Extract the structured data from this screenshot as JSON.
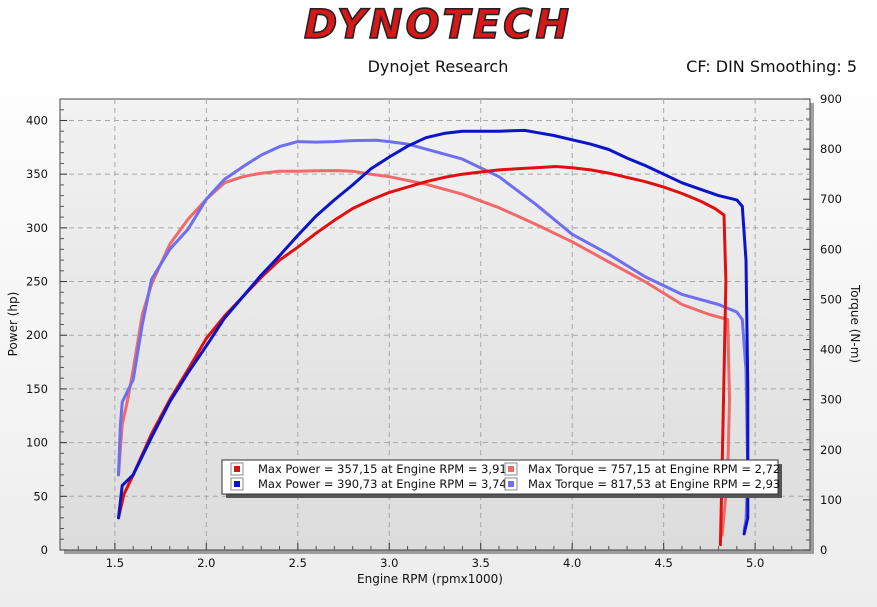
{
  "header": {
    "logo_text": "DYNOTECH",
    "company": "Dynojet Research",
    "settings": "CF: DIN Smoothing: 5"
  },
  "colors": {
    "red_dark": "#e01010",
    "red_light": "#f06a6a",
    "blue_dark": "#0a14c8",
    "blue_light": "#6e6ef0",
    "plot_bg": "#e4e4e4",
    "frame_bg": "#f0f0f0"
  },
  "chart_data": {
    "type": "line",
    "xlabel": "Engine RPM (rpmx1000)",
    "ylabel_left": "Power (hp)",
    "ylabel_right": "Torque (N-m)",
    "xlim": [
      1.2,
      5.3
    ],
    "ylim_left": [
      0,
      420
    ],
    "ylim_right": [
      0,
      900
    ],
    "x_ticks": [
      "1.5",
      "2.0",
      "2.5",
      "3.0",
      "3.5",
      "4.0",
      "4.5",
      "5.0"
    ],
    "y_left_ticks": [
      "0",
      "50",
      "100",
      "150",
      "200",
      "250",
      "300",
      "350",
      "400"
    ],
    "y_right_ticks": [
      "0",
      "100",
      "200",
      "300",
      "400",
      "500",
      "600",
      "700",
      "800",
      "900"
    ],
    "grid": true,
    "legend_position": "bottom-center",
    "legend": [
      "Max Power = 357,15 at Engine RPM = 3,91",
      "Max Power = 390,73 at Engine RPM = 3,74",
      "Max Torque = 757,15 at Engine RPM = 2,72",
      "Max Torque = 817,53 at Engine RPM = 2,93"
    ],
    "series": [
      {
        "name": "Max Power = 357,15 at Engine RPM = 3,91",
        "axis": "left",
        "color": "#e01010",
        "x": [
          1.52,
          1.55,
          1.6,
          1.7,
          1.8,
          1.9,
          2.0,
          2.1,
          2.2,
          2.3,
          2.4,
          2.5,
          2.6,
          2.7,
          2.8,
          2.9,
          3.0,
          3.1,
          3.2,
          3.3,
          3.4,
          3.5,
          3.6,
          3.7,
          3.8,
          3.91,
          4.0,
          4.1,
          4.2,
          4.3,
          4.4,
          4.5,
          4.6,
          4.7,
          4.78,
          4.83,
          4.84,
          4.82,
          4.81
        ],
        "y": [
          30,
          52,
          70,
          108,
          140,
          168,
          197,
          218,
          236,
          254,
          270,
          282,
          295,
          307,
          318,
          326,
          333,
          338,
          343,
          347,
          350,
          352,
          354,
          355,
          356,
          357.15,
          356,
          354,
          351,
          347,
          343,
          338,
          332,
          325,
          318,
          312,
          250,
          80,
          5
        ]
      },
      {
        "name": "Max Power = 390,73 at Engine RPM = 3,74",
        "axis": "left",
        "color": "#0a14c8",
        "x": [
          1.52,
          1.54,
          1.6,
          1.7,
          1.8,
          1.9,
          2.0,
          2.1,
          2.2,
          2.3,
          2.4,
          2.5,
          2.6,
          2.7,
          2.8,
          2.9,
          3.0,
          3.1,
          3.2,
          3.3,
          3.4,
          3.5,
          3.6,
          3.74,
          3.8,
          3.9,
          4.0,
          4.1,
          4.2,
          4.3,
          4.4,
          4.5,
          4.6,
          4.7,
          4.8,
          4.9,
          4.93,
          4.95,
          4.96,
          4.96,
          4.94
        ],
        "y": [
          30,
          60,
          70,
          105,
          138,
          165,
          190,
          216,
          236,
          256,
          274,
          293,
          311,
          326,
          340,
          355,
          366,
          376,
          384,
          388,
          390,
          390,
          390,
          390.73,
          389,
          386,
          382,
          378,
          373,
          365,
          358,
          350,
          342,
          336,
          330,
          326,
          320,
          270,
          150,
          30,
          15
        ]
      },
      {
        "name": "Max Torque = 757,15 at Engine RPM = 2,72",
        "axis": "right",
        "color": "#f06a6a",
        "x": [
          1.52,
          1.54,
          1.57,
          1.6,
          1.65,
          1.7,
          1.75,
          1.8,
          1.9,
          2.0,
          2.1,
          2.2,
          2.3,
          2.4,
          2.5,
          2.6,
          2.72,
          2.8,
          2.9,
          3.0,
          3.2,
          3.4,
          3.6,
          3.8,
          4.0,
          4.2,
          4.4,
          4.6,
          4.75,
          4.85,
          4.86,
          4.85,
          4.82
        ],
        "y": [
          150,
          250,
          300,
          360,
          470,
          530,
          570,
          610,
          660,
          700,
          733,
          745,
          752,
          756,
          756,
          757,
          757.15,
          756,
          750,
          745,
          730,
          710,
          683,
          650,
          615,
          575,
          535,
          490,
          470,
          460,
          300,
          150,
          30
        ]
      },
      {
        "name": "Max Torque = 817,53 at Engine RPM = 2,93",
        "axis": "right",
        "color": "#6e6ef0",
        "x": [
          1.52,
          1.53,
          1.54,
          1.6,
          1.65,
          1.7,
          1.8,
          1.9,
          2.0,
          2.1,
          2.2,
          2.3,
          2.4,
          2.5,
          2.6,
          2.7,
          2.8,
          2.93,
          3.0,
          3.1,
          3.2,
          3.4,
          3.6,
          3.8,
          4.0,
          4.2,
          4.4,
          4.6,
          4.8,
          4.9,
          4.93,
          4.95,
          4.96,
          4.95,
          4.94
        ],
        "y": [
          150,
          250,
          295,
          340,
          450,
          540,
          600,
          640,
          700,
          740,
          765,
          788,
          805,
          815,
          814,
          815,
          817,
          817.53,
          815,
          810,
          800,
          780,
          745,
          690,
          630,
          590,
          545,
          510,
          490,
          475,
          460,
          360,
          150,
          60,
          40
        ]
      }
    ]
  }
}
